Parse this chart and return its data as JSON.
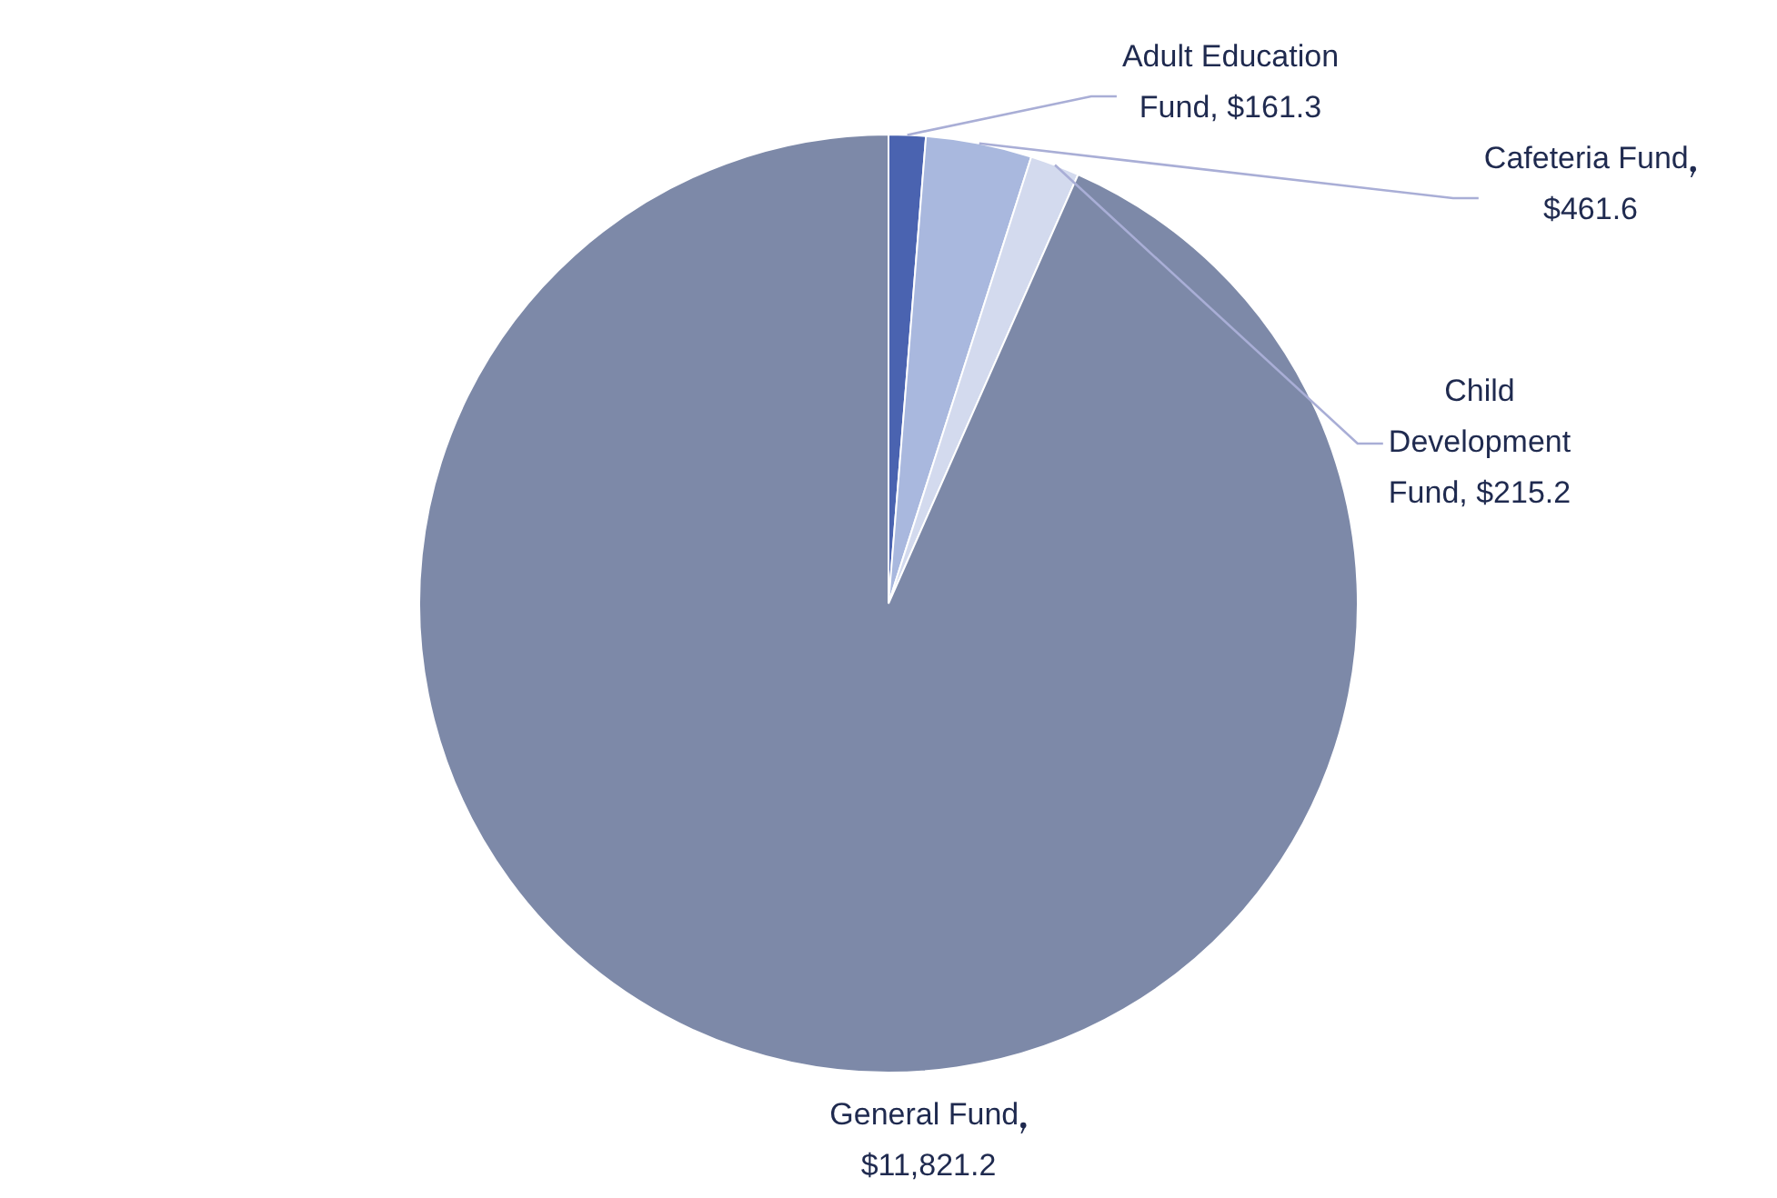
{
  "chart_data": {
    "type": "pie",
    "categories": [
      "Adult Education Fund",
      "Cafeteria Fund",
      "Child Development Fund",
      "General Fund"
    ],
    "values": [
      161.3,
      461.6,
      215.2,
      11821.2
    ],
    "value_labels": [
      "$161.3",
      "$461.6",
      "$215.2",
      "$11,821.2"
    ],
    "colors": [
      "#4a63b0",
      "#a9b8de",
      "#d3daee",
      "#7d89a8"
    ],
    "legend": false
  }
}
